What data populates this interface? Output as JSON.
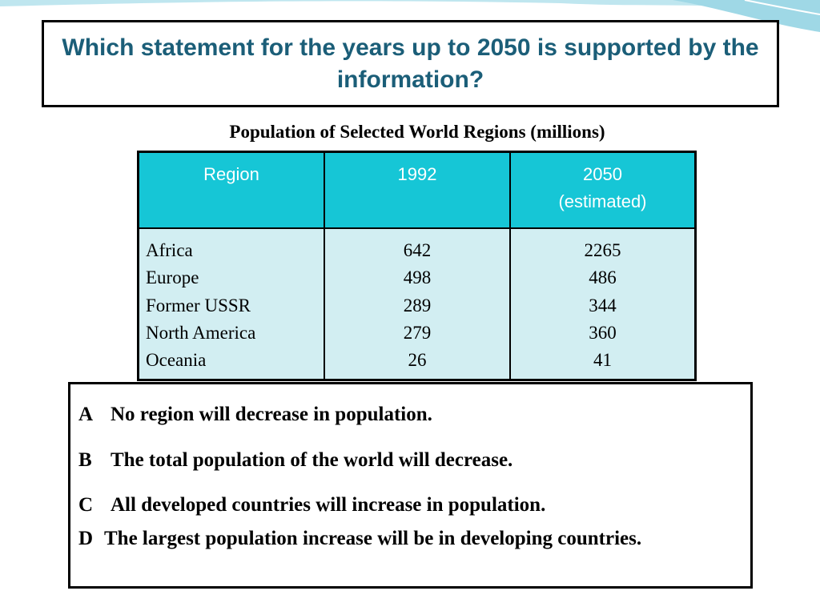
{
  "question": "Which statement for the years up to 2050 is supported by the information?",
  "table": {
    "title": "Population of Selected World Regions (millions)",
    "headers": [
      "Region",
      "1992",
      "2050 (estimated)"
    ],
    "rows": [
      [
        "Africa",
        642,
        2265
      ],
      [
        "Europe",
        498,
        486
      ],
      [
        "Former USSR",
        289,
        344
      ],
      [
        "North America",
        279,
        360
      ],
      [
        "Oceania",
        26,
        41
      ]
    ]
  },
  "options": [
    {
      "letter": "A",
      "text": "No region will decrease in population."
    },
    {
      "letter": "B",
      "text": "The total population of the world will decrease."
    },
    {
      "letter": "C",
      "text": "All developed countries will increase in population."
    },
    {
      "letter": "D",
      "text": "The largest population increase will be in developing countries."
    }
  ]
}
